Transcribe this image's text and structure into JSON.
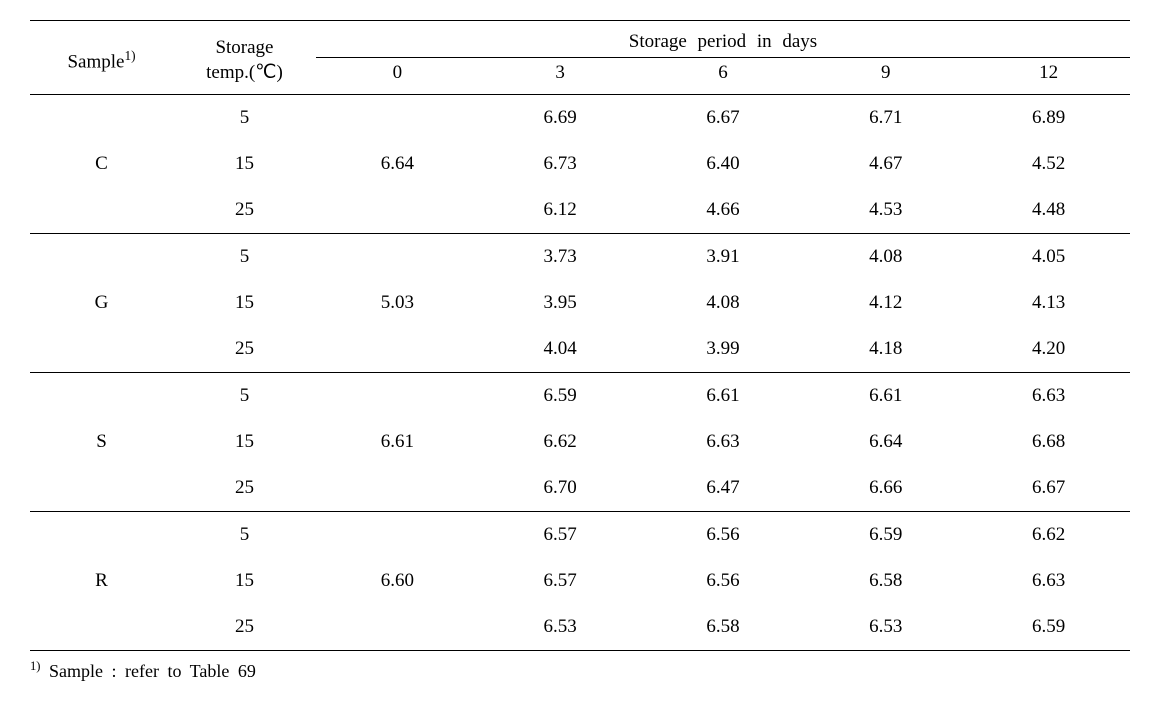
{
  "table": {
    "type": "table",
    "header": {
      "sample_label": "Sample",
      "sample_sup": "1)",
      "temp_label_line1": "Storage",
      "temp_label_line2": "temp.(℃)",
      "period_label": "Storage  period  in  days",
      "day_cols": [
        "0",
        "3",
        "6",
        "9",
        "12"
      ]
    },
    "groups": [
      {
        "sample": "C",
        "day0": "6.64",
        "rows": [
          {
            "temp": "5",
            "d3": "6.69",
            "d6": "6.67",
            "d9": "6.71",
            "d12": "6.89"
          },
          {
            "temp": "15",
            "d3": "6.73",
            "d6": "6.40",
            "d9": "4.67",
            "d12": "4.52"
          },
          {
            "temp": "25",
            "d3": "6.12",
            "d6": "4.66",
            "d9": "4.53",
            "d12": "4.48"
          }
        ]
      },
      {
        "sample": "G",
        "day0": "5.03",
        "rows": [
          {
            "temp": "5",
            "d3": "3.73",
            "d6": "3.91",
            "d9": "4.08",
            "d12": "4.05"
          },
          {
            "temp": "15",
            "d3": "3.95",
            "d6": "4.08",
            "d9": "4.12",
            "d12": "4.13"
          },
          {
            "temp": "25",
            "d3": "4.04",
            "d6": "3.99",
            "d9": "4.18",
            "d12": "4.20"
          }
        ]
      },
      {
        "sample": "S",
        "day0": "6.61",
        "rows": [
          {
            "temp": "5",
            "d3": "6.59",
            "d6": "6.61",
            "d9": "6.61",
            "d12": "6.63"
          },
          {
            "temp": "15",
            "d3": "6.62",
            "d6": "6.63",
            "d9": "6.64",
            "d12": "6.68"
          },
          {
            "temp": "25",
            "d3": "6.70",
            "d6": "6.47",
            "d9": "6.66",
            "d12": "6.67"
          }
        ]
      },
      {
        "sample": "R",
        "day0": "6.60",
        "rows": [
          {
            "temp": "5",
            "d3": "6.57",
            "d6": "6.56",
            "d9": "6.59",
            "d12": "6.62"
          },
          {
            "temp": "15",
            "d3": "6.57",
            "d6": "6.56",
            "d9": "6.58",
            "d12": "6.63"
          },
          {
            "temp": "25",
            "d3": "6.53",
            "d6": "6.58",
            "d9": "6.53",
            "d12": "6.59"
          }
        ]
      }
    ],
    "footnote_sup": "1)",
    "footnote_text": " Sample : refer to Table 69",
    "colors": {
      "text": "#000000",
      "background": "#ffffff",
      "rule": "#000000"
    },
    "font": {
      "family": "Times New Roman",
      "body_size_pt": 14,
      "sup_scale": 0.7
    }
  }
}
